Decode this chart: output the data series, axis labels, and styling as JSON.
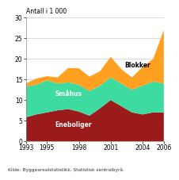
{
  "years": [
    1993,
    1994,
    1995,
    1996,
    1997,
    1998,
    1999,
    2000,
    2001,
    2002,
    2003,
    2004,
    2005,
    2006
  ],
  "eneboliger": [
    5.8,
    6.5,
    7.0,
    7.5,
    7.8,
    7.2,
    6.2,
    8.0,
    10.0,
    8.5,
    7.0,
    6.5,
    7.0,
    7.0
  ],
  "smahus": [
    7.5,
    7.2,
    7.8,
    6.5,
    6.5,
    6.5,
    6.0,
    5.5,
    5.5,
    5.5,
    5.5,
    7.0,
    7.5,
    7.0
  ],
  "blokker": [
    0.7,
    1.5,
    1.0,
    1.5,
    3.5,
    4.0,
    3.5,
    3.5,
    5.0,
    3.5,
    3.0,
    4.5,
    5.5,
    13.0
  ],
  "colors": {
    "eneboliger": "#9B1B1B",
    "smahus": "#3DDBA0",
    "blokker": "#FFA020"
  },
  "title": "Antall i 1 000",
  "ylim": [
    0,
    30
  ],
  "yticks": [
    0,
    5,
    10,
    15,
    20,
    25,
    30
  ],
  "xlim_min": 1993,
  "xlim_max": 2006,
  "xticks": [
    1993,
    1995,
    1998,
    2001,
    2004,
    2006
  ],
  "label_eneboliger": "Eneboliger",
  "label_smahus": "Småhus",
  "label_blokker": "Blokker",
  "source_text": "Kilde: Byggearealstatistikk, Statistisk sentralbyrå.",
  "background_color": "#ffffff",
  "grid_color": "#cccccc"
}
